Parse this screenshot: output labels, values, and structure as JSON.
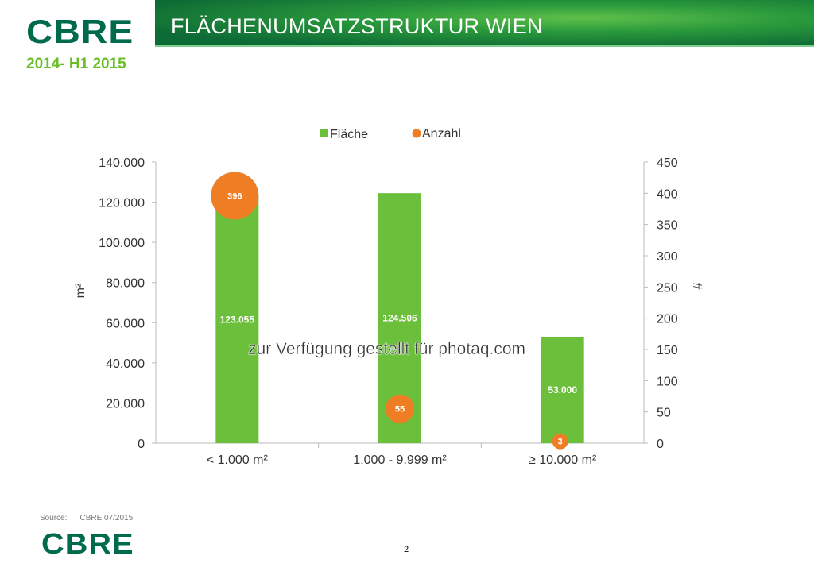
{
  "header": {
    "logo": "CBRE",
    "title": "FLÄCHENUMSATZSTRUKTUR WIEN",
    "subtitle": "2014- H1 2015"
  },
  "footer": {
    "source_label": "Source:",
    "source_value": "CBRE 07/2015",
    "logo": "CBRE",
    "page_number": "2"
  },
  "watermark": "zur Verfügung gestellt für photaq.com",
  "colors": {
    "bar": "#6bbf3b",
    "bubble": "#ee7d23",
    "brand": "#006a4d"
  },
  "chart_data": {
    "type": "bar",
    "categories": [
      "< 1.000 m²",
      "1.000 - 9.999 m²",
      "≥ 10.000 m²"
    ],
    "series": [
      {
        "name": "Fläche",
        "type": "bar",
        "axis": "left",
        "values": [
          123055,
          124506,
          53000
        ],
        "labels": [
          "123.055",
          "124.506",
          "53.000"
        ]
      },
      {
        "name": "Anzahl",
        "type": "bubble",
        "axis": "right",
        "values": [
          396,
          55,
          3
        ],
        "labels": [
          "396",
          "55",
          "3"
        ]
      }
    ],
    "ylabel": "m²",
    "y2label": "#",
    "ylim": [
      0,
      140000
    ],
    "y2lim": [
      0,
      450
    ],
    "yticks": [
      "0",
      "20.000",
      "40.000",
      "60.000",
      "80.000",
      "100.000",
      "120.000",
      "140.000"
    ],
    "y2ticks": [
      "0",
      "50",
      "100",
      "150",
      "200",
      "250",
      "300",
      "350",
      "400",
      "450"
    ],
    "legend": "top",
    "grid": false
  }
}
